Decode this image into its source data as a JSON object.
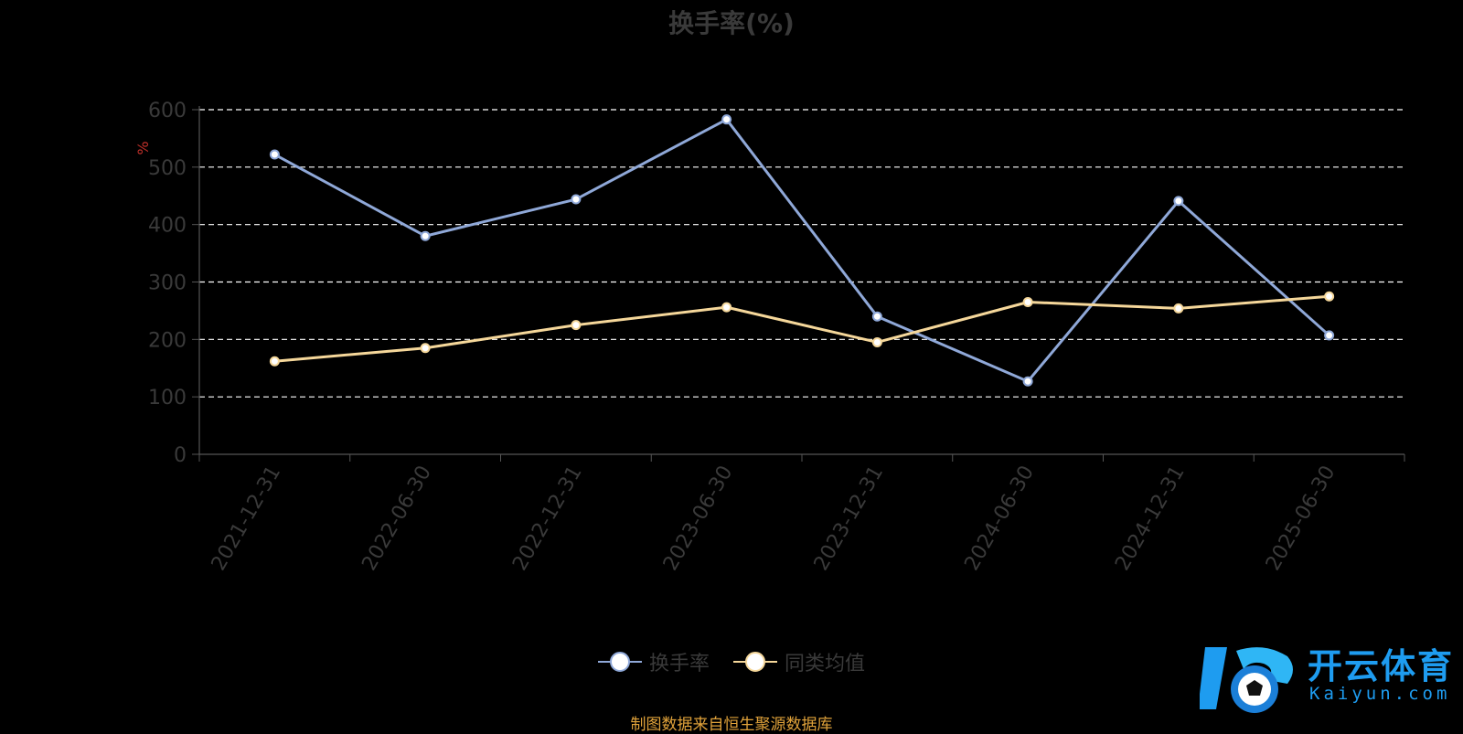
{
  "title": "换手率(%)",
  "source_note": "制图数据来自恒生聚源数据库",
  "logo": {
    "name": "开云体育",
    "domain": "Kaiyun.com"
  },
  "chart_data": {
    "type": "line",
    "ylabel": "%",
    "ylim": [
      0,
      600
    ],
    "yticks": [
      0,
      100,
      200,
      300,
      400,
      500,
      600
    ],
    "categories": [
      "2021-12-31",
      "2022-06-30",
      "2022-12-31",
      "2023-06-30",
      "2023-12-31",
      "2024-06-30",
      "2024-12-31",
      "2025-06-30"
    ],
    "grid": true,
    "legend_position": "bottom",
    "series": [
      {
        "name": "换手率",
        "color": "#8fa8d8",
        "values": [
          522,
          380,
          444,
          583,
          240,
          127,
          441,
          207
        ]
      },
      {
        "name": "同类均值",
        "color": "#f5d79a",
        "values": [
          162,
          185,
          225,
          256,
          195,
          265,
          254,
          275
        ]
      }
    ]
  }
}
